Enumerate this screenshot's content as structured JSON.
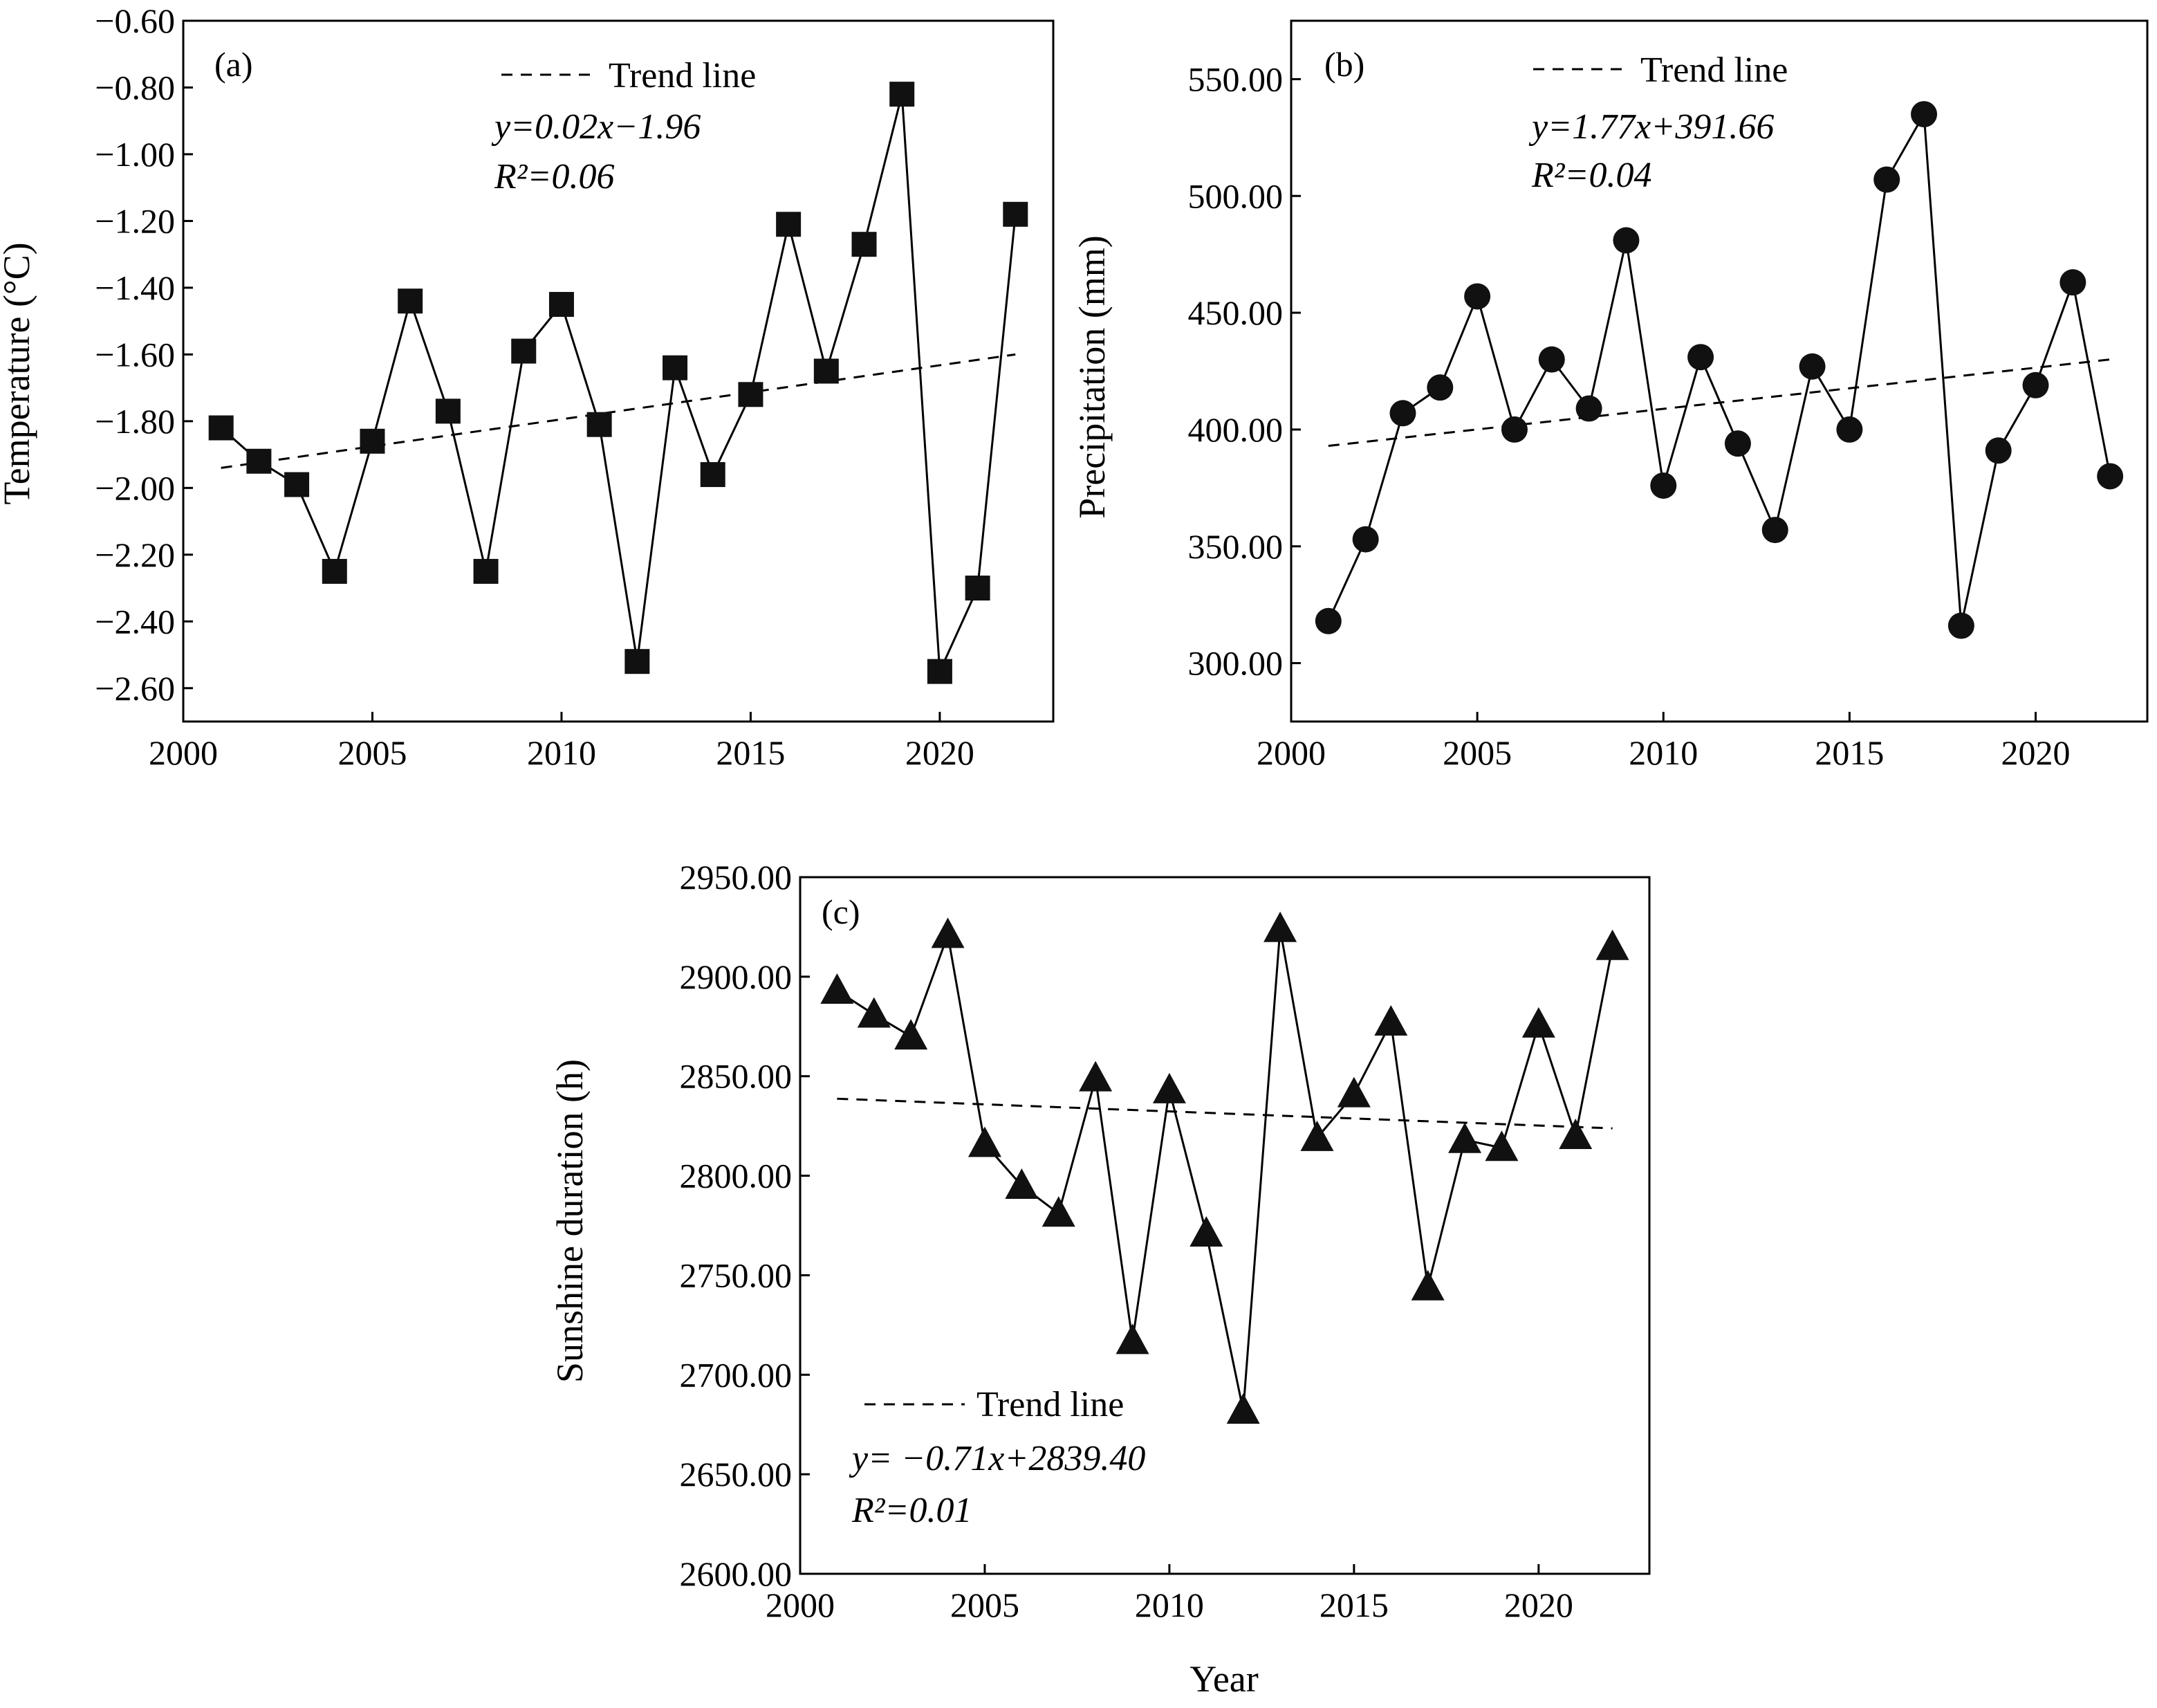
{
  "chart_data": [
    {
      "id": "a",
      "type": "line",
      "panel_label": "(a)",
      "xlabel": "",
      "ylabel": "Temperature (°C)",
      "xlim": [
        2000,
        2023
      ],
      "ylim": [
        -2.7,
        -0.6
      ],
      "xticks": [
        2000,
        2005,
        2010,
        2015,
        2020
      ],
      "yticks": [
        -2.6,
        -2.4,
        -2.2,
        -2.0,
        -1.8,
        -1.6,
        -1.4,
        -1.2,
        -1.0,
        -0.8,
        -0.6
      ],
      "ytick_labels": [
        "−2.60",
        "−2.40",
        "−2.20",
        "−2.00",
        "−1.80",
        "−1.60",
        "−1.40",
        "−1.20",
        "−1.00",
        "−0.80",
        "−0.60"
      ],
      "marker": "square",
      "series": [
        {
          "x": [
            2001,
            2002,
            2003,
            2004,
            2005,
            2006,
            2007,
            2008,
            2009,
            2010,
            2011,
            2012,
            2013,
            2014,
            2015,
            2016,
            2017,
            2018,
            2019,
            2020,
            2021,
            2022
          ],
          "values": [
            -1.82,
            -1.92,
            -1.99,
            -2.25,
            -1.86,
            -1.44,
            -1.77,
            -2.25,
            -1.59,
            -1.45,
            -1.81,
            -2.52,
            -1.64,
            -1.96,
            -1.72,
            -1.21,
            -1.65,
            -1.27,
            -0.82,
            -2.55,
            -2.3,
            -1.18
          ]
        }
      ],
      "trend": {
        "label": "Trend line",
        "x": [
          2001,
          2022
        ],
        "y": [
          -1.94,
          -1.6
        ]
      },
      "annotation": {
        "equation": "y=0.02x−1.96",
        "r2": "R²=0.06"
      },
      "legend_position": "top-right"
    },
    {
      "id": "b",
      "type": "line",
      "panel_label": "(b)",
      "xlabel": "",
      "ylabel": "Precipitation (mm)",
      "xlim": [
        2000,
        2023
      ],
      "ylim": [
        275,
        575
      ],
      "xticks": [
        2000,
        2005,
        2010,
        2015,
        2020
      ],
      "yticks": [
        300,
        350,
        400,
        450,
        500,
        550
      ],
      "ytick_labels": [
        "300.00",
        "350.00",
        "400.00",
        "450.00",
        "500.00",
        "550.00"
      ],
      "marker": "circle",
      "series": [
        {
          "x": [
            2001,
            2002,
            2003,
            2004,
            2005,
            2006,
            2007,
            2008,
            2009,
            2010,
            2011,
            2012,
            2013,
            2014,
            2015,
            2016,
            2017,
            2018,
            2019,
            2020,
            2021,
            2022
          ],
          "values": [
            318,
            353,
            407,
            418,
            457,
            400,
            430,
            409,
            481,
            376,
            431,
            394,
            357,
            427,
            400,
            507,
            535,
            316,
            391,
            419,
            463,
            380
          ]
        }
      ],
      "trend": {
        "label": "Trend line",
        "x": [
          2001,
          2022
        ],
        "y": [
          393,
          430
        ]
      },
      "annotation": {
        "equation": "y=1.77x+391.66",
        "r2": "R²=0.04"
      },
      "legend_position": "top-right"
    },
    {
      "id": "c",
      "type": "line",
      "panel_label": "(c)",
      "xlabel": "Year",
      "ylabel": "Sunshine duration (h)",
      "xlim": [
        2000,
        2023
      ],
      "ylim": [
        2600,
        2950
      ],
      "xticks": [
        2000,
        2005,
        2010,
        2015,
        2020
      ],
      "yticks": [
        2600,
        2650,
        2700,
        2750,
        2800,
        2850,
        2900,
        2950
      ],
      "ytick_labels": [
        "2600.00",
        "2650.00",
        "2700.00",
        "2750.00",
        "2800.00",
        "2850.00",
        "2900.00",
        "2950.00"
      ],
      "marker": "triangle",
      "series": [
        {
          "x": [
            2001,
            2002,
            2003,
            2004,
            2005,
            2006,
            2007,
            2008,
            2009,
            2010,
            2011,
            2012,
            2013,
            2014,
            2015,
            2016,
            2017,
            2018,
            2019,
            2020,
            2021,
            2022
          ],
          "values": [
            2893,
            2881,
            2870,
            2921,
            2816,
            2795,
            2781,
            2849,
            2717,
            2843,
            2771,
            2682,
            2924,
            2819,
            2841,
            2877,
            2744,
            2818,
            2814,
            2876,
            2820,
            2915
          ]
        }
      ],
      "trend": {
        "label": "Trend line",
        "x": [
          2001,
          2022
        ],
        "y": [
          2838.7,
          2823.8
        ]
      },
      "annotation": {
        "equation": "y= −0.71x+2839.40",
        "r2": "R²=0.01"
      },
      "legend_position": "bottom-left"
    }
  ]
}
